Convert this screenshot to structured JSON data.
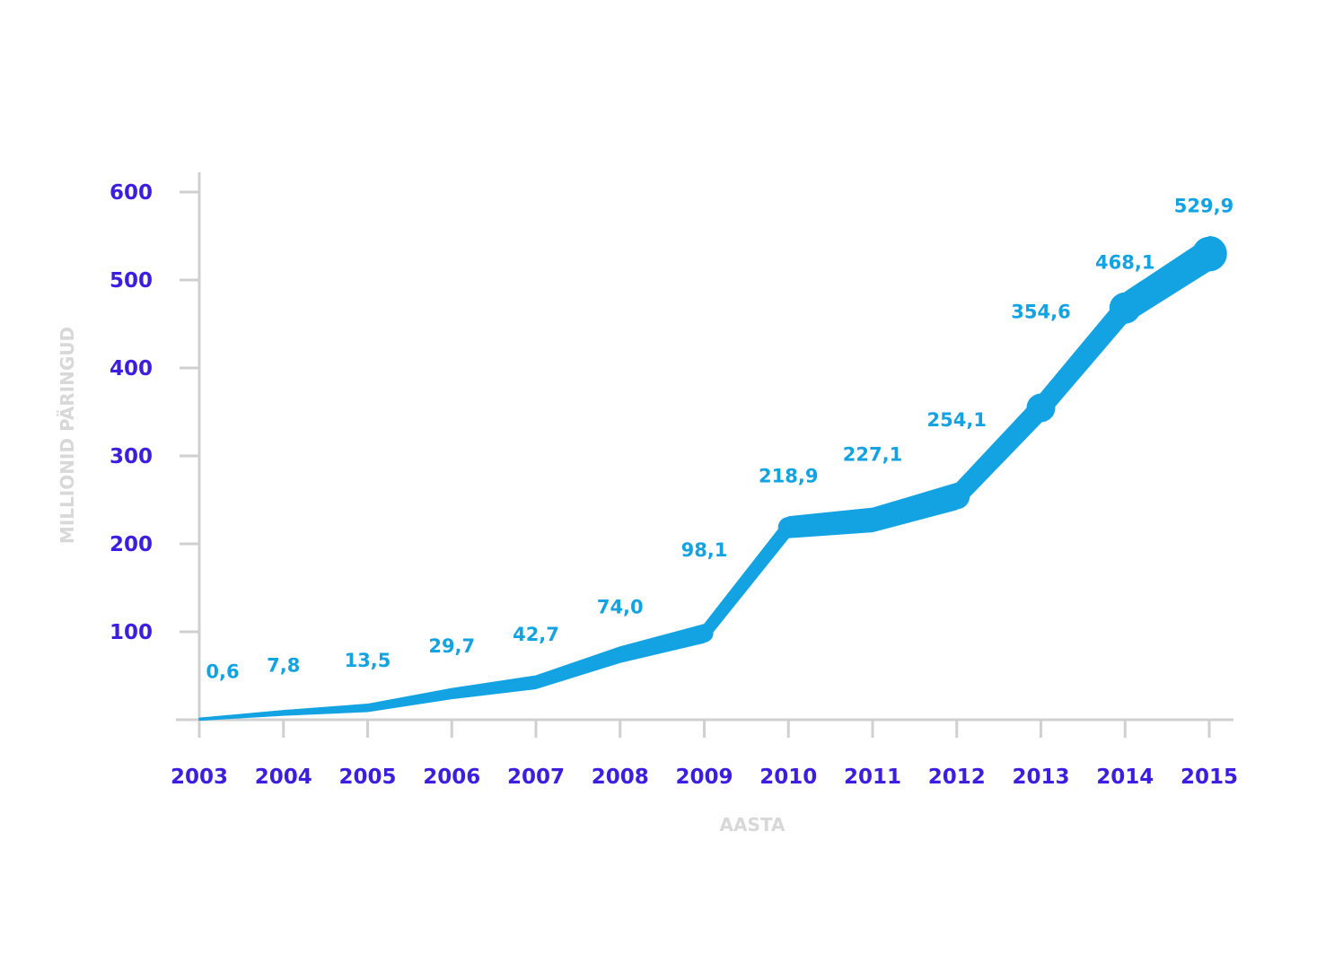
{
  "chart_data": {
    "type": "line",
    "title": "",
    "xlabel": "AASTA",
    "ylabel": "MILLIONID PÄRINGUD",
    "categories": [
      "2003",
      "2004",
      "2005",
      "2006",
      "2007",
      "2008",
      "2009",
      "2010",
      "2011",
      "2012",
      "2013",
      "2014",
      "2015"
    ],
    "values": [
      0.6,
      7.8,
      13.5,
      29.7,
      42.7,
      74.0,
      98.1,
      218.9,
      227.1,
      254.1,
      354.6,
      468.1,
      529.9
    ],
    "data_labels": [
      "0,6",
      "7,8",
      "13,5",
      "29,7",
      "42,7",
      "74,0",
      "98,1",
      "218,9",
      "227,1",
      "254,1",
      "354,6",
      "468,1",
      "529,9"
    ],
    "yticks": [
      "100",
      "200",
      "300",
      "400",
      "500",
      "600"
    ],
    "ytick_values": [
      100,
      200,
      300,
      400,
      500,
      600
    ],
    "ylim": [
      0,
      600
    ],
    "grid": false,
    "colors": {
      "line": "#14a3e2",
      "tick_labels": "#3c1ee0",
      "axis_titles": "#d8d8d8",
      "axis": "#d0d0d0"
    }
  }
}
